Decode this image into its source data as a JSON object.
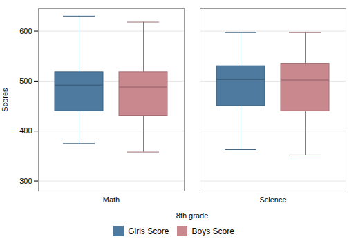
{
  "chart_data": {
    "type": "box",
    "categories": [
      "Math",
      "Science"
    ],
    "series": [
      {
        "name": "Girls Score",
        "color": "#4d7a9e",
        "values": [
          {
            "whislo": 375,
            "q1": 440,
            "med": 492,
            "q3": 518,
            "whishi": 630
          },
          {
            "whislo": 363,
            "q1": 450,
            "med": 503,
            "q3": 530,
            "whishi": 597
          }
        ]
      },
      {
        "name": "Boys Score",
        "color": "#c9888e",
        "values": [
          {
            "whislo": 358,
            "q1": 430,
            "med": 488,
            "q3": 518,
            "whishi": 618
          },
          {
            "whislo": 352,
            "q1": 440,
            "med": 502,
            "q3": 535,
            "whishi": 597
          }
        ]
      }
    ],
    "xlabel": "8th grade",
    "ylabel": "Scores",
    "ylim": [
      280,
      645
    ],
    "yticks": [
      300,
      400,
      500,
      600
    ],
    "grid": true,
    "legend": "bottom"
  }
}
